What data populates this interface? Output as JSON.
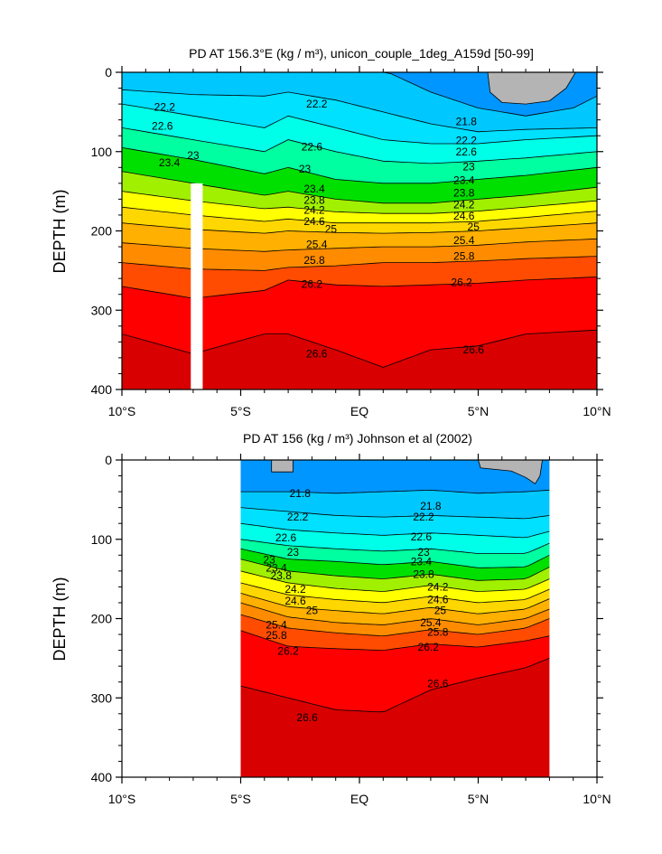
{
  "chart_data": [
    {
      "type": "contour",
      "title": "PD AT 156.3°E (kg / m³), unicon_couple_1deg_A159d [50-99]",
      "xlabel": "",
      "ylabel": "DEPTH (m)",
      "xlim": [
        -10,
        10
      ],
      "ylim": [
        400,
        0
      ],
      "x_ticks": [
        -10,
        -5,
        0,
        5,
        10
      ],
      "x_tick_labels": [
        "10°S",
        "5°S",
        "EQ",
        "5°N",
        "10°N"
      ],
      "y_ticks": [
        0,
        100,
        200,
        300,
        400
      ],
      "y_tick_labels": [
        "0",
        "100",
        "200",
        "300",
        "400"
      ],
      "data_extent_x": [
        -10,
        10
      ],
      "mask_column_x": [
        -7.1,
        -6.6
      ],
      "mask_column_from_depth": 140,
      "isopycnals": [
        {
          "level": 21.8,
          "label": "21.8",
          "x": [
            1.2,
            3,
            5,
            7,
            9,
            10
          ],
          "depth": [
            0,
            25,
            45,
            55,
            45,
            30
          ]
        },
        {
          "level": 22.2,
          "label": "22.2",
          "x": [
            -10,
            -7,
            -4,
            -3,
            -1,
            1,
            3,
            5,
            7,
            10
          ],
          "depth": [
            22,
            28,
            30,
            25,
            35,
            50,
            65,
            75,
            72,
            70
          ]
        },
        {
          "level": 22.6,
          "label": "22.6",
          "x": [
            -10,
            -7,
            -4,
            -3,
            -1,
            1,
            3,
            5,
            7,
            10
          ],
          "depth": [
            40,
            55,
            70,
            55,
            70,
            85,
            90,
            90,
            85,
            80
          ]
        },
        {
          "level": 23,
          "label": "23",
          "x": [
            -10,
            -7,
            -4,
            -3,
            -1,
            1,
            3,
            5,
            7,
            10
          ],
          "depth": [
            70,
            85,
            100,
            85,
            100,
            112,
            115,
            112,
            108,
            100
          ]
        },
        {
          "level": 23.4,
          "label": "23.4",
          "x": [
            -10,
            -7,
            -4,
            -3,
            -1,
            1,
            3,
            5,
            7,
            10
          ],
          "depth": [
            95,
            110,
            128,
            120,
            135,
            140,
            140,
            135,
            130,
            120
          ]
        },
        {
          "level": 23.8,
          "label": "23.8",
          "x": [
            -10,
            -7,
            -4,
            -3,
            -1,
            1,
            3,
            5,
            7,
            10
          ],
          "depth": [
            125,
            140,
            155,
            150,
            160,
            165,
            165,
            160,
            155,
            145
          ]
        },
        {
          "level": 24.2,
          "label": "24.2",
          "x": [
            -10,
            -7,
            -4,
            -3,
            -1,
            1,
            3,
            5,
            7,
            10
          ],
          "depth": [
            150,
            162,
            172,
            170,
            176,
            178,
            178,
            175,
            170,
            162
          ]
        },
        {
          "level": 24.6,
          "label": "24.6",
          "x": [
            -10,
            -7,
            -4,
            -3,
            -1,
            1,
            3,
            5,
            7,
            10
          ],
          "depth": [
            170,
            180,
            188,
            185,
            190,
            190,
            190,
            188,
            183,
            175
          ]
        },
        {
          "level": 25,
          "label": "25",
          "x": [
            -10,
            -7,
            -4,
            -3,
            -1,
            1,
            3,
            5,
            7,
            10
          ],
          "depth": [
            190,
            198,
            203,
            200,
            202,
            203,
            202,
            200,
            196,
            190
          ]
        },
        {
          "level": 25.4,
          "label": "25.4",
          "x": [
            -10,
            -7,
            -4,
            -3,
            -1,
            1,
            3,
            5,
            7,
            10
          ],
          "depth": [
            215,
            222,
            226,
            224,
            222,
            220,
            220,
            218,
            214,
            210
          ]
        },
        {
          "level": 25.8,
          "label": "25.8",
          "x": [
            -10,
            -7,
            -4,
            -3,
            -1,
            1,
            3,
            5,
            7,
            10
          ],
          "depth": [
            240,
            248,
            250,
            246,
            244,
            240,
            240,
            238,
            235,
            232
          ]
        },
        {
          "level": 26.2,
          "label": "26.2",
          "x": [
            -10,
            -7,
            -4,
            -3,
            -1,
            1,
            3,
            5,
            7,
            10
          ],
          "depth": [
            270,
            285,
            275,
            262,
            268,
            270,
            268,
            266,
            262,
            258
          ]
        },
        {
          "level": 26.6,
          "label": "26.6",
          "x": [
            -10,
            -7,
            -4,
            -3,
            -1,
            1,
            3,
            5,
            7,
            10
          ],
          "depth": [
            330,
            355,
            330,
            330,
            350,
            372,
            350,
            345,
            330,
            325
          ]
        }
      ],
      "contour_labels": [
        {
          "text": "22.2",
          "x": -8.2,
          "depth": 44
        },
        {
          "text": "22.2",
          "x": -1.8,
          "depth": 40
        },
        {
          "text": "21.8",
          "x": 4.5,
          "depth": 62
        },
        {
          "text": "22.6",
          "x": -8.3,
          "depth": 68
        },
        {
          "text": "22.2",
          "x": 4.5,
          "depth": 86
        },
        {
          "text": "22.6",
          "x": -2.0,
          "depth": 94
        },
        {
          "text": "22.6",
          "x": 4.5,
          "depth": 100
        },
        {
          "text": "23",
          "x": -7.0,
          "depth": 105
        },
        {
          "text": "23.4",
          "x": -8.0,
          "depth": 114
        },
        {
          "text": "23",
          "x": -2.3,
          "depth": 122
        },
        {
          "text": "23",
          "x": 4.6,
          "depth": 119
        },
        {
          "text": "23.4",
          "x": -1.9,
          "depth": 147
        },
        {
          "text": "23.4",
          "x": 4.4,
          "depth": 136
        },
        {
          "text": "23.8",
          "x": -1.9,
          "depth": 161
        },
        {
          "text": "23.8",
          "x": 4.4,
          "depth": 152
        },
        {
          "text": "24.2",
          "x": -1.9,
          "depth": 174
        },
        {
          "text": "24.2",
          "x": 4.4,
          "depth": 167
        },
        {
          "text": "24.6",
          "x": -1.9,
          "depth": 188
        },
        {
          "text": "24.6",
          "x": 4.4,
          "depth": 181
        },
        {
          "text": "25",
          "x": -1.2,
          "depth": 198
        },
        {
          "text": "25",
          "x": 4.8,
          "depth": 195
        },
        {
          "text": "25.4",
          "x": -1.8,
          "depth": 217
        },
        {
          "text": "25.4",
          "x": 4.4,
          "depth": 212
        },
        {
          "text": "25.8",
          "x": -1.9,
          "depth": 237
        },
        {
          "text": "25.8",
          "x": 4.4,
          "depth": 232
        },
        {
          "text": "26.2",
          "x": -2.0,
          "depth": 267
        },
        {
          "text": "26.2",
          "x": 4.3,
          "depth": 265
        },
        {
          "text": "26.6",
          "x": -1.8,
          "depth": 355
        },
        {
          "text": "26.6",
          "x": 4.8,
          "depth": 350
        }
      ]
    },
    {
      "type": "contour",
      "title": "PD AT 156 (kg / m³) Johnson et al (2002)",
      "xlabel": "",
      "ylabel": "DEPTH (m)",
      "xlim": [
        -10,
        10
      ],
      "ylim": [
        400,
        0
      ],
      "x_ticks": [
        -10,
        -5,
        0,
        5,
        10
      ],
      "x_tick_labels": [
        "10°S",
        "5°S",
        "EQ",
        "5°N",
        "10°N"
      ],
      "y_ticks": [
        0,
        100,
        200,
        300,
        400
      ],
      "y_tick_labels": [
        "0",
        "100",
        "200",
        "300",
        "400"
      ],
      "data_extent_x": [
        -5,
        8
      ],
      "mask_column_x": null,
      "mask_column_from_depth": null,
      "isopycnals": [
        {
          "level": 21.8,
          "label": "21.8",
          "x": [
            -5,
            -3,
            -1,
            1,
            3,
            5,
            7,
            8
          ],
          "depth": [
            40,
            40,
            42,
            40,
            38,
            42,
            40,
            38
          ]
        },
        {
          "level": 22.2,
          "label": "22.2",
          "x": [
            -5,
            -3,
            -1,
            1,
            3,
            5,
            7,
            8
          ],
          "depth": [
            60,
            65,
            70,
            72,
            70,
            72,
            74,
            70
          ]
        },
        {
          "level": 22.6,
          "label": "22.6",
          "x": [
            -5,
            -3,
            -1,
            1,
            3,
            5,
            7,
            8
          ],
          "depth": [
            80,
            88,
            92,
            95,
            92,
            95,
            98,
            90
          ]
        },
        {
          "level": 23,
          "label": "23",
          "x": [
            -5,
            -3,
            -1,
            1,
            3,
            5,
            7,
            8
          ],
          "depth": [
            100,
            108,
            112,
            115,
            112,
            118,
            118,
            105
          ]
        },
        {
          "level": 23.4,
          "label": "23.4",
          "x": [
            -5,
            -3,
            -1,
            1,
            3,
            5,
            7,
            8
          ],
          "depth": [
            112,
            125,
            128,
            132,
            128,
            136,
            135,
            120
          ]
        },
        {
          "level": 23.8,
          "label": "23.8",
          "x": [
            -5,
            -3,
            -1,
            1,
            3,
            5,
            7,
            8
          ],
          "depth": [
            125,
            140,
            146,
            150,
            144,
            152,
            150,
            135
          ]
        },
        {
          "level": 24.2,
          "label": "24.2",
          "x": [
            -5,
            -3,
            -1,
            1,
            3,
            5,
            7,
            8
          ],
          "depth": [
            140,
            155,
            162,
            166,
            158,
            166,
            163,
            150
          ]
        },
        {
          "level": 24.6,
          "label": "24.6",
          "x": [
            -5,
            -3,
            -1,
            1,
            3,
            5,
            7,
            8
          ],
          "depth": [
            155,
            170,
            176,
            180,
            172,
            180,
            176,
            163
          ]
        },
        {
          "level": 25,
          "label": "25",
          "x": [
            -5,
            -3,
            -1,
            1,
            3,
            5,
            7,
            8
          ],
          "depth": [
            168,
            185,
            190,
            194,
            186,
            194,
            188,
            175
          ]
        },
        {
          "level": 25.4,
          "label": "25.4",
          "x": [
            -5,
            -3,
            -1,
            1,
            3,
            5,
            7,
            8
          ],
          "depth": [
            180,
            198,
            205,
            208,
            200,
            208,
            200,
            188
          ]
        },
        {
          "level": 25.8,
          "label": "25.8",
          "x": [
            -5,
            -3,
            -1,
            1,
            3,
            5,
            7,
            8
          ],
          "depth": [
            195,
            212,
            218,
            222,
            214,
            220,
            212,
            200
          ]
        },
        {
          "level": 26.2,
          "label": "26.2",
          "x": [
            -5,
            -3,
            -1,
            1,
            3,
            5,
            7,
            8
          ],
          "depth": [
            215,
            235,
            238,
            240,
            232,
            236,
            228,
            222
          ]
        },
        {
          "level": 26.6,
          "label": "26.6",
          "x": [
            -5,
            -3,
            -1,
            1,
            3,
            5,
            7,
            8
          ],
          "depth": [
            285,
            300,
            315,
            318,
            290,
            275,
            262,
            250
          ]
        }
      ],
      "contour_labels": [
        {
          "text": "21.8",
          "x": -2.5,
          "depth": 42
        },
        {
          "text": "21.8",
          "x": 3.0,
          "depth": 58
        },
        {
          "text": "22.2",
          "x": -2.6,
          "depth": 72
        },
        {
          "text": "22.2",
          "x": 2.7,
          "depth": 72
        },
        {
          "text": "22.6",
          "x": -3.1,
          "depth": 98
        },
        {
          "text": "22.6",
          "x": 2.6,
          "depth": 97
        },
        {
          "text": "23",
          "x": -2.8,
          "depth": 116
        },
        {
          "text": "23",
          "x": 2.7,
          "depth": 116
        },
        {
          "text": "23",
          "x": -3.8,
          "depth": 126
        },
        {
          "text": "23.4",
          "x": -3.5,
          "depth": 136
        },
        {
          "text": "23.4",
          "x": 2.6,
          "depth": 128
        },
        {
          "text": "23.8",
          "x": -3.3,
          "depth": 146
        },
        {
          "text": "23.8",
          "x": 2.7,
          "depth": 144
        },
        {
          "text": "24.2",
          "x": -2.7,
          "depth": 163
        },
        {
          "text": "24.2",
          "x": 3.3,
          "depth": 160
        },
        {
          "text": "24.6",
          "x": -2.7,
          "depth": 178
        },
        {
          "text": "24.6",
          "x": 3.3,
          "depth": 176
        },
        {
          "text": "25",
          "x": -2.0,
          "depth": 190
        },
        {
          "text": "25",
          "x": 3.4,
          "depth": 190
        },
        {
          "text": "25.4",
          "x": -3.5,
          "depth": 208
        },
        {
          "text": "25.4",
          "x": 3.0,
          "depth": 205
        },
        {
          "text": "25.8",
          "x": -3.5,
          "depth": 221
        },
        {
          "text": "25.8",
          "x": 3.3,
          "depth": 217
        },
        {
          "text": "26.2",
          "x": -3.0,
          "depth": 241
        },
        {
          "text": "26.2",
          "x": 2.9,
          "depth": 236
        },
        {
          "text": "26.6",
          "x": -2.2,
          "depth": 325
        },
        {
          "text": "26.6",
          "x": 3.3,
          "depth": 282
        }
      ]
    }
  ],
  "colors": {
    "bands": [
      "#ff00ff",
      "#cc00cc",
      "#8b00cc",
      "#5a18e8",
      "#0000ff",
      "#005cff",
      "#0096ff",
      "#00c8ff",
      "#00e0ff",
      "#00ffe8",
      "#00ffa0",
      "#00e000",
      "#a0f000",
      "#ffff00",
      "#ffd700",
      "#ffb000",
      "#ff8c00",
      "#ff4c00",
      "#ff0000",
      "#d80000"
    ],
    "land": "#b4b4b4",
    "mask": "#ffffff"
  }
}
